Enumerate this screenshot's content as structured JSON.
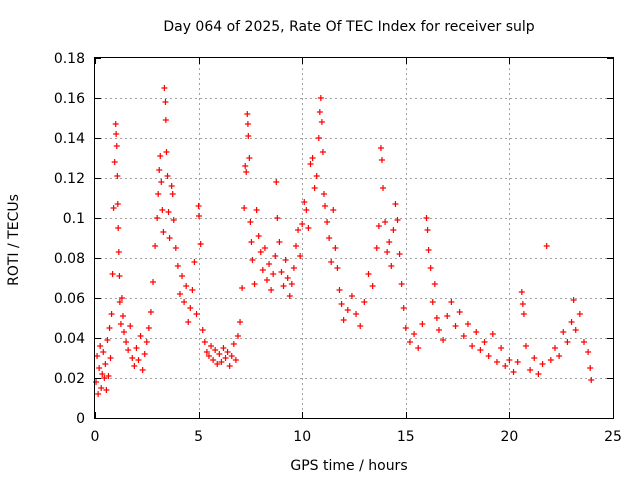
{
  "chart_data": {
    "type": "scatter",
    "title": "Day 064 of 2025, Rate Of TEC Index for receiver sulp",
    "xlabel": "GPS time / hours",
    "ylabel": "ROTI / TECUs",
    "xlim": [
      0,
      25
    ],
    "ylim": [
      0,
      0.18
    ],
    "xticks": [
      0,
      5,
      10,
      15,
      20,
      25
    ],
    "xtick_labels": [
      "0",
      "5",
      "10",
      "15",
      "20",
      "25"
    ],
    "yticks": [
      0,
      0.02,
      0.04,
      0.06,
      0.08,
      0.1,
      0.12,
      0.14,
      0.16,
      0.18
    ],
    "ytick_labels": [
      "0",
      "0.02",
      "0.04",
      "0.06",
      "0.08",
      "0.1",
      "0.12",
      "0.14",
      "0.16",
      "0.18"
    ],
    "grid": true,
    "marker": "plus",
    "color": "#ff0000",
    "points": [
      [
        0.05,
        0.018
      ],
      [
        0.1,
        0.031
      ],
      [
        0.15,
        0.012
      ],
      [
        0.2,
        0.025
      ],
      [
        0.25,
        0.036
      ],
      [
        0.3,
        0.015
      ],
      [
        0.35,
        0.022
      ],
      [
        0.4,
        0.033
      ],
      [
        0.45,
        0.02
      ],
      [
        0.5,
        0.027
      ],
      [
        0.55,
        0.014
      ],
      [
        0.6,
        0.039
      ],
      [
        0.65,
        0.021
      ],
      [
        0.7,
        0.045
      ],
      [
        0.75,
        0.03
      ],
      [
        0.8,
        0.052
      ],
      [
        0.85,
        0.072
      ],
      [
        0.9,
        0.105
      ],
      [
        0.95,
        0.128
      ],
      [
        1.0,
        0.147
      ],
      [
        1.02,
        0.142
      ],
      [
        1.05,
        0.136
      ],
      [
        1.08,
        0.121
      ],
      [
        1.1,
        0.107
      ],
      [
        1.12,
        0.095
      ],
      [
        1.15,
        0.083
      ],
      [
        1.18,
        0.071
      ],
      [
        1.2,
        0.058
      ],
      [
        1.25,
        0.047
      ],
      [
        1.3,
        0.06
      ],
      [
        1.35,
        0.051
      ],
      [
        1.4,
        0.043
      ],
      [
        1.5,
        0.038
      ],
      [
        1.6,
        0.034
      ],
      [
        1.7,
        0.046
      ],
      [
        1.8,
        0.03
      ],
      [
        1.9,
        0.026
      ],
      [
        2.0,
        0.035
      ],
      [
        2.1,
        0.029
      ],
      [
        2.2,
        0.041
      ],
      [
        2.3,
        0.024
      ],
      [
        2.4,
        0.032
      ],
      [
        2.5,
        0.038
      ],
      [
        2.6,
        0.045
      ],
      [
        2.7,
        0.053
      ],
      [
        2.8,
        0.068
      ],
      [
        2.9,
        0.086
      ],
      [
        3.0,
        0.1
      ],
      [
        3.05,
        0.112
      ],
      [
        3.1,
        0.124
      ],
      [
        3.15,
        0.131
      ],
      [
        3.2,
        0.118
      ],
      [
        3.25,
        0.104
      ],
      [
        3.3,
        0.093
      ],
      [
        3.35,
        0.165
      ],
      [
        3.4,
        0.158
      ],
      [
        3.42,
        0.149
      ],
      [
        3.45,
        0.133
      ],
      [
        3.5,
        0.121
      ],
      [
        3.55,
        0.103
      ],
      [
        3.6,
        0.09
      ],
      [
        3.7,
        0.116
      ],
      [
        3.75,
        0.112
      ],
      [
        3.8,
        0.099
      ],
      [
        3.9,
        0.085
      ],
      [
        4.0,
        0.076
      ],
      [
        4.1,
        0.062
      ],
      [
        4.2,
        0.071
      ],
      [
        4.3,
        0.058
      ],
      [
        4.4,
        0.066
      ],
      [
        4.5,
        0.048
      ],
      [
        4.6,
        0.055
      ],
      [
        4.7,
        0.064
      ],
      [
        4.8,
        0.078
      ],
      [
        4.9,
        0.052
      ],
      [
        5.0,
        0.106
      ],
      [
        5.02,
        0.101
      ],
      [
        5.1,
        0.087
      ],
      [
        5.2,
        0.044
      ],
      [
        5.3,
        0.038
      ],
      [
        5.4,
        0.033
      ],
      [
        5.5,
        0.031
      ],
      [
        5.6,
        0.036
      ],
      [
        5.7,
        0.029
      ],
      [
        5.8,
        0.034
      ],
      [
        5.9,
        0.027
      ],
      [
        6.0,
        0.032
      ],
      [
        6.1,
        0.028
      ],
      [
        6.2,
        0.035
      ],
      [
        6.3,
        0.03
      ],
      [
        6.4,
        0.033
      ],
      [
        6.5,
        0.026
      ],
      [
        6.6,
        0.031
      ],
      [
        6.7,
        0.037
      ],
      [
        6.8,
        0.029
      ],
      [
        6.9,
        0.041
      ],
      [
        7.0,
        0.048
      ],
      [
        7.1,
        0.065
      ],
      [
        7.2,
        0.105
      ],
      [
        7.25,
        0.126
      ],
      [
        7.3,
        0.123
      ],
      [
        7.35,
        0.152
      ],
      [
        7.38,
        0.147
      ],
      [
        7.4,
        0.141
      ],
      [
        7.45,
        0.13
      ],
      [
        7.5,
        0.098
      ],
      [
        7.55,
        0.088
      ],
      [
        7.6,
        0.079
      ],
      [
        7.7,
        0.067
      ],
      [
        7.8,
        0.104
      ],
      [
        7.9,
        0.091
      ],
      [
        8.0,
        0.083
      ],
      [
        8.1,
        0.074
      ],
      [
        8.2,
        0.085
      ],
      [
        8.3,
        0.069
      ],
      [
        8.4,
        0.077
      ],
      [
        8.5,
        0.064
      ],
      [
        8.6,
        0.072
      ],
      [
        8.7,
        0.081
      ],
      [
        8.75,
        0.118
      ],
      [
        8.8,
        0.1
      ],
      [
        8.9,
        0.088
      ],
      [
        9.0,
        0.073
      ],
      [
        9.1,
        0.066
      ],
      [
        9.2,
        0.079
      ],
      [
        9.3,
        0.07
      ],
      [
        9.4,
        0.061
      ],
      [
        9.5,
        0.067
      ],
      [
        9.6,
        0.075
      ],
      [
        9.7,
        0.086
      ],
      [
        9.8,
        0.094
      ],
      [
        9.9,
        0.081
      ],
      [
        10.0,
        0.097
      ],
      [
        10.1,
        0.108
      ],
      [
        10.2,
        0.104
      ],
      [
        10.3,
        0.095
      ],
      [
        10.4,
        0.127
      ],
      [
        10.5,
        0.13
      ],
      [
        10.6,
        0.115
      ],
      [
        10.7,
        0.121
      ],
      [
        10.8,
        0.14
      ],
      [
        10.85,
        0.153
      ],
      [
        10.9,
        0.16
      ],
      [
        10.95,
        0.148
      ],
      [
        11.0,
        0.133
      ],
      [
        11.05,
        0.112
      ],
      [
        11.1,
        0.106
      ],
      [
        11.2,
        0.098
      ],
      [
        11.3,
        0.09
      ],
      [
        11.4,
        0.078
      ],
      [
        11.5,
        0.104
      ],
      [
        11.6,
        0.085
      ],
      [
        11.7,
        0.075
      ],
      [
        11.8,
        0.064
      ],
      [
        11.9,
        0.057
      ],
      [
        12.0,
        0.049
      ],
      [
        12.2,
        0.054
      ],
      [
        12.4,
        0.061
      ],
      [
        12.6,
        0.052
      ],
      [
        12.8,
        0.046
      ],
      [
        13.0,
        0.058
      ],
      [
        13.2,
        0.072
      ],
      [
        13.4,
        0.066
      ],
      [
        13.6,
        0.085
      ],
      [
        13.7,
        0.096
      ],
      [
        13.8,
        0.135
      ],
      [
        13.85,
        0.129
      ],
      [
        13.9,
        0.115
      ],
      [
        14.0,
        0.098
      ],
      [
        14.1,
        0.083
      ],
      [
        14.2,
        0.088
      ],
      [
        14.3,
        0.076
      ],
      [
        14.4,
        0.094
      ],
      [
        14.5,
        0.107
      ],
      [
        14.6,
        0.099
      ],
      [
        14.7,
        0.082
      ],
      [
        14.8,
        0.067
      ],
      [
        14.9,
        0.055
      ],
      [
        15.0,
        0.045
      ],
      [
        15.2,
        0.038
      ],
      [
        15.4,
        0.042
      ],
      [
        15.6,
        0.035
      ],
      [
        15.8,
        0.047
      ],
      [
        16.0,
        0.1
      ],
      [
        16.05,
        0.094
      ],
      [
        16.1,
        0.084
      ],
      [
        16.2,
        0.075
      ],
      [
        16.3,
        0.058
      ],
      [
        16.4,
        0.067
      ],
      [
        16.5,
        0.05
      ],
      [
        16.6,
        0.044
      ],
      [
        16.8,
        0.039
      ],
      [
        17.0,
        0.051
      ],
      [
        17.2,
        0.058
      ],
      [
        17.4,
        0.046
      ],
      [
        17.6,
        0.053
      ],
      [
        17.8,
        0.041
      ],
      [
        18.0,
        0.047
      ],
      [
        18.2,
        0.036
      ],
      [
        18.4,
        0.043
      ],
      [
        18.6,
        0.034
      ],
      [
        18.8,
        0.038
      ],
      [
        19.0,
        0.031
      ],
      [
        19.2,
        0.042
      ],
      [
        19.4,
        0.028
      ],
      [
        19.6,
        0.035
      ],
      [
        19.8,
        0.026
      ],
      [
        20.0,
        0.029
      ],
      [
        20.2,
        0.023
      ],
      [
        20.4,
        0.028
      ],
      [
        20.6,
        0.063
      ],
      [
        20.65,
        0.057
      ],
      [
        20.7,
        0.052
      ],
      [
        20.8,
        0.036
      ],
      [
        21.0,
        0.024
      ],
      [
        21.2,
        0.03
      ],
      [
        21.4,
        0.022
      ],
      [
        21.6,
        0.027
      ],
      [
        21.8,
        0.086
      ],
      [
        22.0,
        0.029
      ],
      [
        22.2,
        0.035
      ],
      [
        22.4,
        0.031
      ],
      [
        22.6,
        0.043
      ],
      [
        22.8,
        0.038
      ],
      [
        23.0,
        0.048
      ],
      [
        23.1,
        0.059
      ],
      [
        23.2,
        0.044
      ],
      [
        23.4,
        0.052
      ],
      [
        23.6,
        0.038
      ],
      [
        23.8,
        0.033
      ],
      [
        23.9,
        0.025
      ],
      [
        23.95,
        0.019
      ]
    ]
  }
}
